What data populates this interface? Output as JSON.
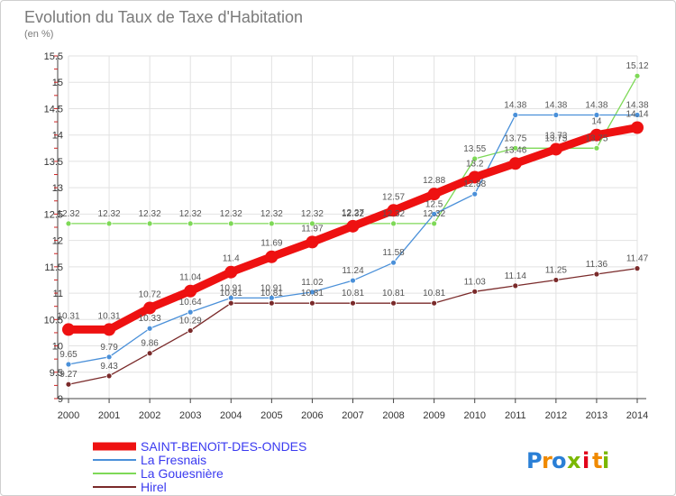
{
  "chart_data": {
    "type": "line",
    "title": "Evolution du Taux de Taxe d'Habitation",
    "subtitle": "(en %)",
    "xlabel": "",
    "ylabel": "",
    "x": [
      "2000",
      "2001",
      "2002",
      "2003",
      "2004",
      "2005",
      "2006",
      "2007",
      "2008",
      "2009",
      "2010",
      "2011",
      "2012",
      "2013",
      "2014"
    ],
    "ylim": [
      9,
      15.5
    ],
    "yticks": [
      "9",
      "9.5",
      "10",
      "10.5",
      "11",
      "11.5",
      "12",
      "12.5",
      "13",
      "13.5",
      "14",
      "14.5",
      "15",
      "15.5"
    ],
    "grid": true,
    "legend_position": "bottom-left",
    "series": [
      {
        "name": "SAINT-BENOîT-DES-ONDES",
        "color": "#ee1111",
        "values": [
          10.31,
          10.31,
          10.72,
          11.04,
          11.4,
          11.69,
          11.97,
          12.27,
          12.57,
          12.88,
          13.2,
          13.46,
          13.73,
          14,
          14.14
        ]
      },
      {
        "name": "La Fresnais",
        "color": "#4a90d9",
        "values": [
          9.65,
          9.79,
          10.33,
          10.64,
          10.91,
          10.91,
          11.02,
          11.24,
          11.58,
          12.5,
          12.88,
          14.38,
          14.38,
          14.38,
          14.38
        ]
      },
      {
        "name": "La Gouesnière",
        "color": "#7ed957",
        "values": [
          12.32,
          12.32,
          12.32,
          12.32,
          12.32,
          12.32,
          12.32,
          12.32,
          12.32,
          12.32,
          13.55,
          13.75,
          13.75,
          13.75,
          15.12
        ]
      },
      {
        "name": "Hirel",
        "color": "#7a2a2a",
        "values": [
          9.27,
          9.43,
          9.86,
          10.29,
          10.81,
          10.81,
          10.81,
          10.81,
          10.81,
          10.81,
          11.03,
          11.14,
          11.25,
          11.36,
          11.47
        ]
      }
    ],
    "data_labels": [
      {
        "series": 0,
        "labels": [
          "10.31",
          "10.31",
          "10.72",
          "11.04",
          "11.4",
          "11.69",
          "11.97",
          "12.27",
          "12.57",
          "12.88",
          "13.2",
          "13.46",
          "13.73",
          "14",
          "14.14"
        ]
      },
      {
        "series": 1,
        "labels": [
          "9.65",
          "9.79",
          "10.33",
          "10.64",
          "10.91",
          "10.91",
          "11.02",
          "11.24",
          "11.58",
          "12.5",
          "12.88",
          "14.38",
          "14.38",
          "14.38",
          "14.38"
        ]
      },
      {
        "series": 2,
        "labels": [
          "12.32",
          "12.32",
          "12.32",
          "12.32",
          "12.32",
          "12.32",
          "12.32",
          "12.32",
          "12.32",
          "12.32",
          "13.55",
          "13.75",
          "13.75",
          "13.75",
          "15.12"
        ]
      },
      {
        "series": 3,
        "labels": [
          "9.27",
          "9.43",
          "9.86",
          "10.29",
          "10.81",
          "10.81",
          "10.81",
          "10.81",
          "10.81",
          "10.81",
          "11.03",
          "11.14",
          "11.25",
          "11.36",
          "11.47"
        ]
      }
    ]
  },
  "brand": {
    "letters": [
      "P",
      "r",
      "o",
      "x",
      "i",
      "t",
      "i"
    ],
    "colors": [
      "#2a7fd6",
      "#f08a00",
      "#2a7fd6",
      "#7ab800",
      "#e2001a",
      "#f08a00",
      "#7ab800"
    ]
  }
}
